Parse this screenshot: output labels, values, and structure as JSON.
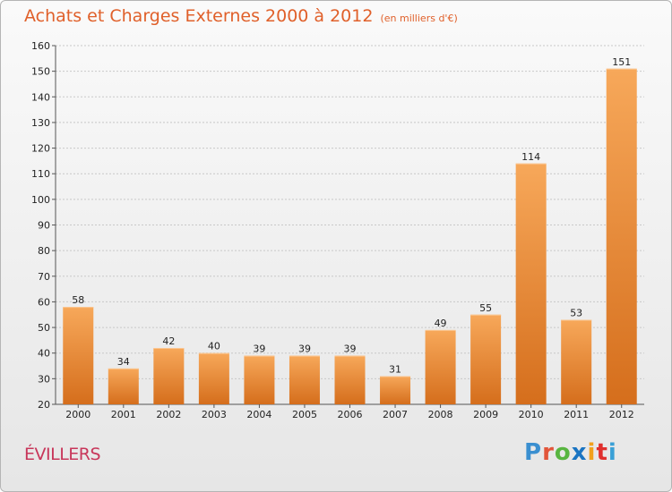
{
  "header": {
    "title": "Achats et Charges Externes 2000 à 2012",
    "subtitle": "(en milliers d'€)"
  },
  "footer": {
    "commune": "ÉVILLERS",
    "logo_letters": [
      "P",
      "r",
      "o",
      "x",
      "i",
      "t",
      "i"
    ],
    "logo_colors": [
      "#3a8fd0",
      "#e2553a",
      "#58b540",
      "#1a74c2",
      "#f2a11d",
      "#e0302e",
      "#3aa0d6"
    ]
  },
  "colors": {
    "bar_top": "#f7a85a",
    "bar_bottom": "#d56e1c",
    "grid": "#c8c8c8",
    "title": "#e0602a",
    "commune": "#c8365a"
  },
  "chart_data": {
    "type": "bar",
    "categories": [
      "2000",
      "2001",
      "2002",
      "2003",
      "2004",
      "2005",
      "2006",
      "2007",
      "2008",
      "2009",
      "2010",
      "2011",
      "2012"
    ],
    "values": [
      58,
      34,
      42,
      40,
      39,
      39,
      39,
      31,
      49,
      55,
      114,
      53,
      151
    ],
    "ylim": [
      20,
      160
    ],
    "yticks": [
      20,
      30,
      40,
      50,
      60,
      70,
      80,
      90,
      100,
      110,
      120,
      130,
      140,
      150,
      160
    ],
    "grid": true,
    "title": "Achats et Charges Externes 2000 à 2012",
    "xlabel": "",
    "ylabel": ""
  }
}
